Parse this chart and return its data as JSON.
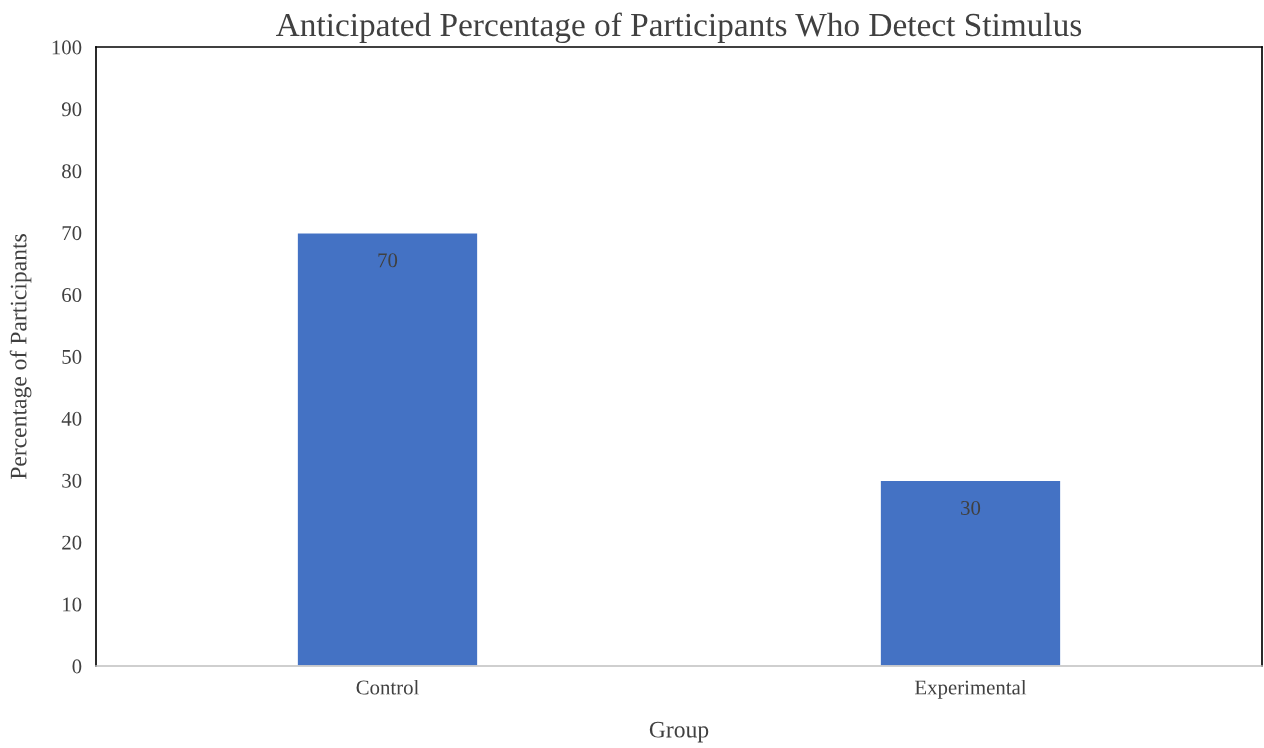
{
  "chart_data": {
    "type": "bar",
    "title": "Anticipated Percentage of Participants Who Detect Stimulus",
    "xlabel": "Group",
    "ylabel": "Percentage of Participants",
    "categories": [
      "Control",
      "Experimental"
    ],
    "series": [
      {
        "color": "#4472c4",
        "values": [
          70,
          30
        ]
      }
    ],
    "ylim": [
      0,
      100
    ],
    "yticks": [
      0,
      10,
      20,
      30,
      40,
      50,
      60,
      70,
      80,
      90,
      100
    ],
    "grid": false,
    "legend": false,
    "data_labels": true
  }
}
